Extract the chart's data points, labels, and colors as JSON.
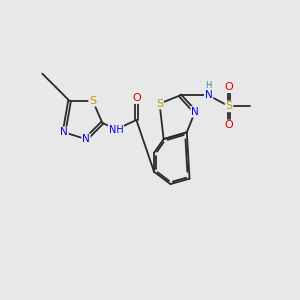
{
  "bg_color": "#e8e8e8",
  "bond_color": "#2a2a2a",
  "bond_lw": 1.3,
  "dbo": 0.05,
  "atom_colors": {
    "S": "#b8a000",
    "N": "#0000ee",
    "O": "#dd0000",
    "H": "#338888",
    "C": "#2a2a2a"
  },
  "fs": 7.5,
  "xlim": [
    -0.5,
    10.5
  ],
  "ylim": [
    0.5,
    7.0
  ]
}
